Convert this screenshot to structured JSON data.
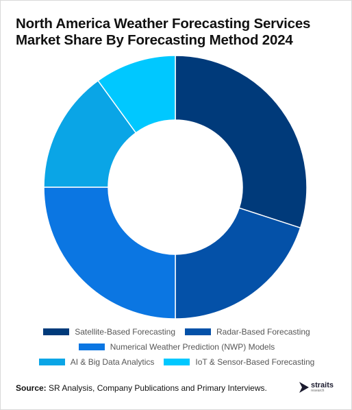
{
  "title": "North America Weather Forecasting Services Market Share By Forecasting Method 2024",
  "source_label": "Source:",
  "source_text": "SR Analysis, Company Publications and Primary Interviews.",
  "logo": {
    "name": "straits",
    "sub": "research"
  },
  "chart_data": {
    "type": "pie",
    "donut": true,
    "title": "North America Weather Forecasting Services Market Share By Forecasting Method 2024",
    "legend_position": "bottom",
    "slices": [
      {
        "label": "Satellite-Based Forecasting",
        "value": 30,
        "color": "#003a7a"
      },
      {
        "label": "Radar-Based Forecasting",
        "value": 20,
        "color": "#0451a8"
      },
      {
        "label": "Numerical Weather Prediction (NWP) Models",
        "value": 25,
        "color": "#0b76e2"
      },
      {
        "label": "AI & Big Data Analytics",
        "value": 15,
        "color": "#0aa5e6"
      },
      {
        "label": "IoT & Sensor-Based Forecasting",
        "value": 10,
        "color": "#00c8ff"
      }
    ]
  }
}
